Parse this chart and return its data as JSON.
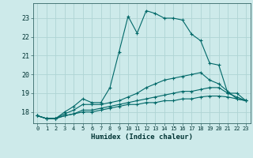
{
  "xlabel": "Humidex (Indice chaleur)",
  "ylabel": "",
  "bg_color": "#cdeaea",
  "grid_color": "#afd4d4",
  "line_color": "#006868",
  "xlim": [
    -0.5,
    23.5
  ],
  "ylim": [
    17.4,
    23.8
  ],
  "yticks": [
    18,
    19,
    20,
    21,
    22,
    23
  ],
  "xticks": [
    0,
    1,
    2,
    3,
    4,
    5,
    6,
    7,
    8,
    9,
    10,
    11,
    12,
    13,
    14,
    15,
    16,
    17,
    18,
    19,
    20,
    21,
    22,
    23
  ],
  "series": [
    {
      "x": [
        0,
        1,
        2,
        3,
        4,
        5,
        6,
        7,
        8,
        9,
        10,
        11,
        12,
        13,
        14,
        15,
        16,
        17,
        18,
        19,
        20,
        21,
        22,
        23
      ],
      "y": [
        17.8,
        17.65,
        17.65,
        18.0,
        18.3,
        18.7,
        18.5,
        18.5,
        19.3,
        21.2,
        23.1,
        22.2,
        23.4,
        23.25,
        23.0,
        23.0,
        22.9,
        22.15,
        21.8,
        20.6,
        20.5,
        19.0,
        19.0,
        18.6
      ]
    },
    {
      "x": [
        0,
        1,
        2,
        3,
        4,
        5,
        6,
        7,
        8,
        9,
        10,
        11,
        12,
        13,
        14,
        15,
        16,
        17,
        18,
        19,
        20,
        21,
        22,
        23
      ],
      "y": [
        17.8,
        17.65,
        17.65,
        17.9,
        18.1,
        18.4,
        18.4,
        18.4,
        18.5,
        18.6,
        18.8,
        19.0,
        19.3,
        19.5,
        19.7,
        19.8,
        19.9,
        20.0,
        20.1,
        19.7,
        19.5,
        19.1,
        18.7,
        18.6
      ]
    },
    {
      "x": [
        0,
        1,
        2,
        3,
        4,
        5,
        6,
        7,
        8,
        9,
        10,
        11,
        12,
        13,
        14,
        15,
        16,
        17,
        18,
        19,
        20,
        21,
        22,
        23
      ],
      "y": [
        17.8,
        17.65,
        17.65,
        17.8,
        17.9,
        18.1,
        18.1,
        18.2,
        18.3,
        18.4,
        18.5,
        18.6,
        18.7,
        18.8,
        18.9,
        19.0,
        19.1,
        19.1,
        19.2,
        19.3,
        19.3,
        19.0,
        18.8,
        18.6
      ]
    },
    {
      "x": [
        0,
        1,
        2,
        3,
        4,
        5,
        6,
        7,
        8,
        9,
        10,
        11,
        12,
        13,
        14,
        15,
        16,
        17,
        18,
        19,
        20,
        21,
        22,
        23
      ],
      "y": [
        17.8,
        17.65,
        17.65,
        17.8,
        17.9,
        18.0,
        18.0,
        18.1,
        18.2,
        18.3,
        18.4,
        18.4,
        18.5,
        18.5,
        18.6,
        18.6,
        18.7,
        18.7,
        18.8,
        18.85,
        18.85,
        18.8,
        18.7,
        18.6
      ]
    }
  ]
}
